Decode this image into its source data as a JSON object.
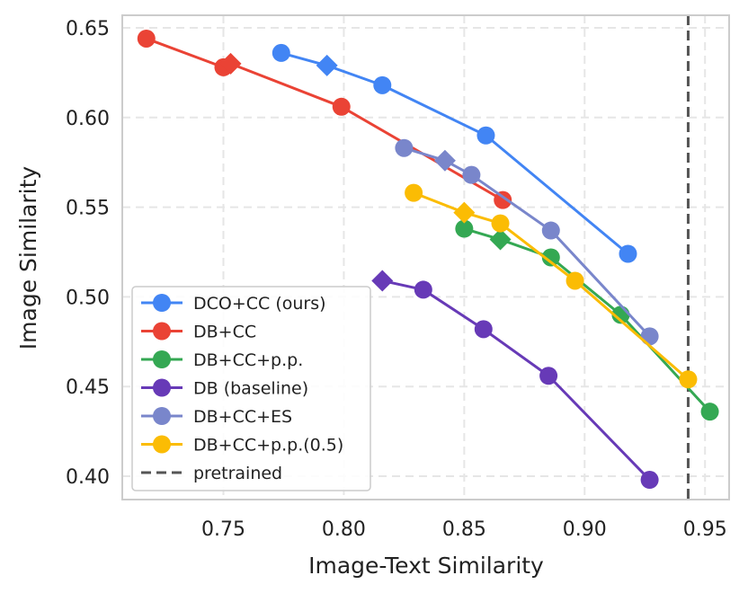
{
  "chart_data": {
    "type": "line",
    "title": "",
    "xlabel": "Image-Text Similarity",
    "ylabel": "Image Similarity",
    "xlim": [
      0.708,
      0.96
    ],
    "ylim": [
      0.387,
      0.657
    ],
    "xticks": [
      0.75,
      0.8,
      0.85,
      0.9,
      0.95
    ],
    "yticks": [
      0.4,
      0.45,
      0.5,
      0.55,
      0.6,
      0.65
    ],
    "xtick_labels": [
      "0.75",
      "0.80",
      "0.85",
      "0.90",
      "0.95"
    ],
    "ytick_labels": [
      "0.40",
      "0.45",
      "0.50",
      "0.55",
      "0.60",
      "0.65"
    ],
    "grid": true,
    "legend_position": "lower-left",
    "vline": {
      "x": 0.943,
      "name": "pretrained",
      "color": "#555555",
      "style": "dashed"
    },
    "series": [
      {
        "name": "DCO+CC (ours)",
        "color": "#4285F4",
        "x": [
          0.774,
          0.793,
          0.816,
          0.859,
          0.918
        ],
        "y": [
          0.636,
          0.629,
          0.618,
          0.59,
          0.524
        ],
        "markers": [
          "circle",
          "diamond",
          "circle",
          "circle",
          "circle"
        ]
      },
      {
        "name": "DB+CC",
        "color": "#EA4335",
        "x": [
          0.718,
          0.75,
          0.753,
          0.799,
          0.866
        ],
        "y": [
          0.644,
          0.628,
          0.63,
          0.606,
          0.554
        ],
        "markers": [
          "circle",
          "circle",
          "diamond",
          "circle",
          "circle"
        ]
      },
      {
        "name": "DB+CC+p.p.",
        "color": "#34A853",
        "x": [
          0.85,
          0.865,
          0.886,
          0.915,
          0.952
        ],
        "y": [
          0.538,
          0.532,
          0.522,
          0.49,
          0.436
        ],
        "markers": [
          "circle",
          "diamond",
          "circle",
          "circle",
          "circle"
        ]
      },
      {
        "name": "DB (baseline)",
        "color": "#673AB7",
        "x": [
          0.816,
          0.833,
          0.858,
          0.885,
          0.927
        ],
        "y": [
          0.509,
          0.504,
          0.482,
          0.456,
          0.398
        ],
        "markers": [
          "diamond",
          "circle",
          "circle",
          "circle",
          "circle"
        ]
      },
      {
        "name": "DB+CC+ES",
        "color": "#7986CB",
        "x": [
          0.825,
          0.842,
          0.853,
          0.886,
          0.927
        ],
        "y": [
          0.583,
          0.576,
          0.568,
          0.537,
          0.478
        ],
        "markers": [
          "circle",
          "diamond",
          "circle",
          "circle",
          "circle"
        ]
      },
      {
        "name": "DB+CC+p.p.(0.5)",
        "color": "#FBBC04",
        "x": [
          0.829,
          0.85,
          0.865,
          0.896,
          0.943
        ],
        "y": [
          0.558,
          0.547,
          0.541,
          0.509,
          0.454
        ],
        "markers": [
          "circle",
          "diamond",
          "circle",
          "circle",
          "circle"
        ]
      }
    ]
  }
}
